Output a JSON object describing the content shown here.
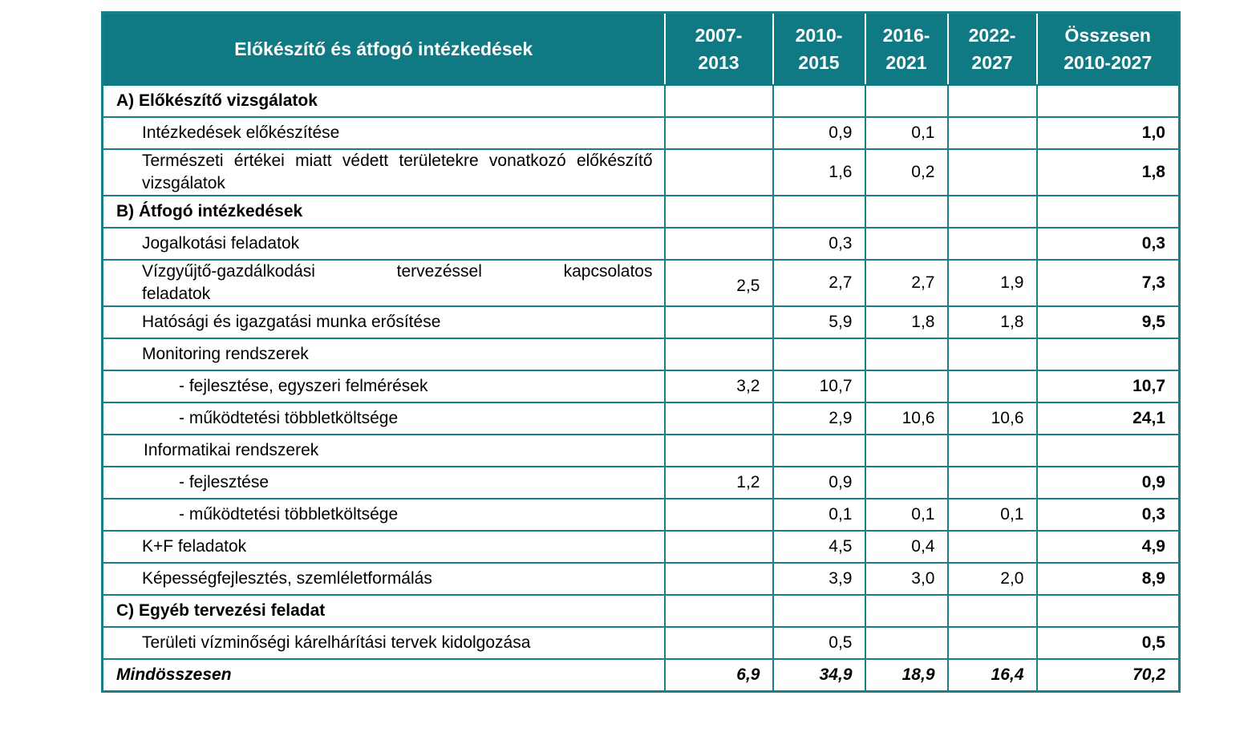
{
  "header": {
    "title": "Előkészítő és átfogó intézkedések",
    "col1_a": "2007-",
    "col1_b": "2013",
    "col2_a": "2010-",
    "col2_b": "2015",
    "col3_a": "2016-",
    "col3_b": "2021",
    "col4_a": "2022-",
    "col4_b": "2027",
    "col5_a": "Összesen",
    "col5_b": "2010-2027"
  },
  "rows": [
    {
      "label": "A) Előkészítő vizsgálatok",
      "v1": "",
      "v2": "",
      "v3": "",
      "v4": "",
      "total": ""
    },
    {
      "label": "Intézkedések előkészítése",
      "v1": "",
      "v2": "0,9",
      "v3": "0,1",
      "v4": "",
      "total": "1,0"
    },
    {
      "label": "Természeti értékei miatt védett területekre vonatkozó előkészítő vizsgálatok",
      "v1": "",
      "v2": "1,6",
      "v3": "0,2",
      "v4": "",
      "total": "1,8"
    },
    {
      "label": "B) Átfogó intézkedések",
      "v1": "",
      "v2": "",
      "v3": "",
      "v4": "",
      "total": ""
    },
    {
      "label": "Jogalkotási feladatok",
      "v1": "",
      "v2": "0,3",
      "v3": "",
      "v4": "",
      "total": "0,3"
    },
    {
      "label_a": "Vízgyűjtő-gazdálkodási",
      "label_b": "tervezéssel",
      "label_c": "kapcsolatos",
      "label_d": "feladatok",
      "v1": "2,5",
      "v2": "2,7",
      "v3": "2,7",
      "v4": "1,9",
      "total": "7,3"
    },
    {
      "label": "Hatósági és igazgatási munka erősítése",
      "v1": "",
      "v2": "5,9",
      "v3": "1,8",
      "v4": "1,8",
      "total": "9,5"
    },
    {
      "label": "Monitoring rendszerek",
      "v1": "",
      "v2": "",
      "v3": "",
      "v4": "",
      "total": ""
    },
    {
      "label": "- fejlesztése, egyszeri felmérések",
      "v1": "3,2",
      "v2": "10,7",
      "v3": "",
      "v4": "",
      "total": "10,7"
    },
    {
      "label": "- működtetési többletköltsége",
      "v1": "",
      "v2": "2,9",
      "v3": "10,6",
      "v4": "10,6",
      "total": "24,1"
    },
    {
      "label": "Informatikai rendszerek",
      "v1": "",
      "v2": "",
      "v3": "",
      "v4": "",
      "total": ""
    },
    {
      "label": "- fejlesztése",
      "v1": "1,2",
      "v2": "0,9",
      "v3": "",
      "v4": "",
      "total": "0,9"
    },
    {
      "label": "- működtetési többletköltsége",
      "v1": "",
      "v2": "0,1",
      "v3": "0,1",
      "v4": "0,1",
      "total": "0,3"
    },
    {
      "label": "K+F feladatok",
      "v1": "",
      "v2": "4,5",
      "v3": "0,4",
      "v4": "",
      "total": "4,9"
    },
    {
      "label": "Képességfejlesztés, szemléletformálás",
      "v1": "",
      "v2": "3,9",
      "v3": "3,0",
      "v4": "2,0",
      "total": "8,9"
    },
    {
      "label": "C) Egyéb tervezési feladat",
      "v1": "",
      "v2": "",
      "v3": "",
      "v4": "",
      "total": ""
    },
    {
      "label": "Területi vízminőségi kárelhárítási tervek kidolgozása",
      "v1": "",
      "v2": "0,5",
      "v3": "",
      "v4": "",
      "total": "0,5"
    },
    {
      "label": "Mindösszesen",
      "v1": "6,9",
      "v2": "34,9",
      "v3": "18,9",
      "v4": "16,4",
      "total": "70,2"
    }
  ]
}
